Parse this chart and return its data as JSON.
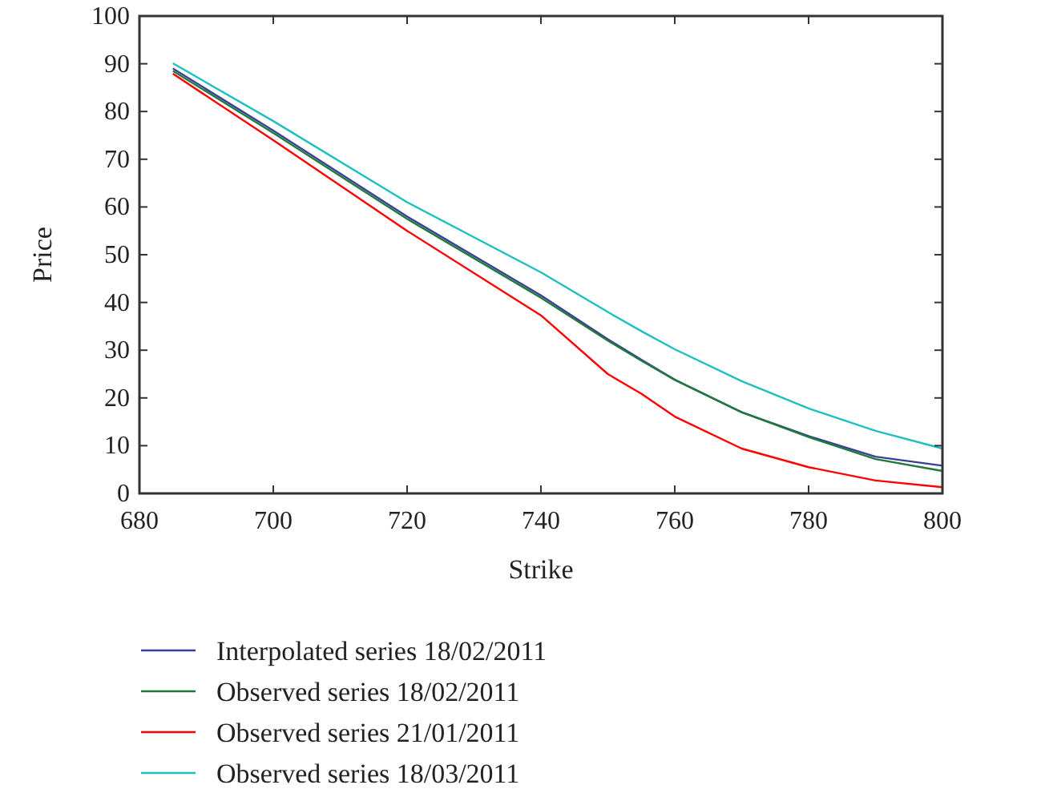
{
  "chart_data": {
    "type": "line",
    "xlabel": "Strike",
    "ylabel": "Price",
    "x": [
      685,
      700,
      720,
      740,
      750,
      755,
      760,
      770,
      780,
      790,
      800
    ],
    "series": [
      {
        "name": "Interpolated series 18/02/2011",
        "color": "#3a3f9a",
        "values": [
          89,
          76,
          58,
          41.5,
          32.3,
          28,
          23.8,
          17,
          12,
          7.7,
          5.8
        ]
      },
      {
        "name": "Observed series 18/02/2011",
        "color": "#1f7a3a",
        "values": [
          88.5,
          75.5,
          57.5,
          41,
          32,
          27.8,
          23.8,
          17,
          11.8,
          7.2,
          4.7
        ]
      },
      {
        "name": "Observed series 21/01/2011",
        "color": "#ff0000",
        "values": [
          87.9,
          74,
          55,
          37.3,
          25,
          20.9,
          16.1,
          9.4,
          5.5,
          2.7,
          1.3
        ]
      },
      {
        "name": "Observed series 18/03/2011",
        "color": "#1fbfbf",
        "values": [
          90.1,
          78,
          61,
          46.3,
          38,
          34,
          30.2,
          23.5,
          17.8,
          13.1,
          9.4
        ]
      }
    ],
    "xlim": [
      680,
      800
    ],
    "xticks": [
      680,
      700,
      720,
      740,
      760,
      780,
      800
    ],
    "ylim": [
      0,
      100
    ],
    "yticks": [
      0,
      10,
      20,
      30,
      40,
      50,
      60,
      70,
      80,
      90,
      100
    ],
    "grid": false,
    "legend": "bottom"
  }
}
